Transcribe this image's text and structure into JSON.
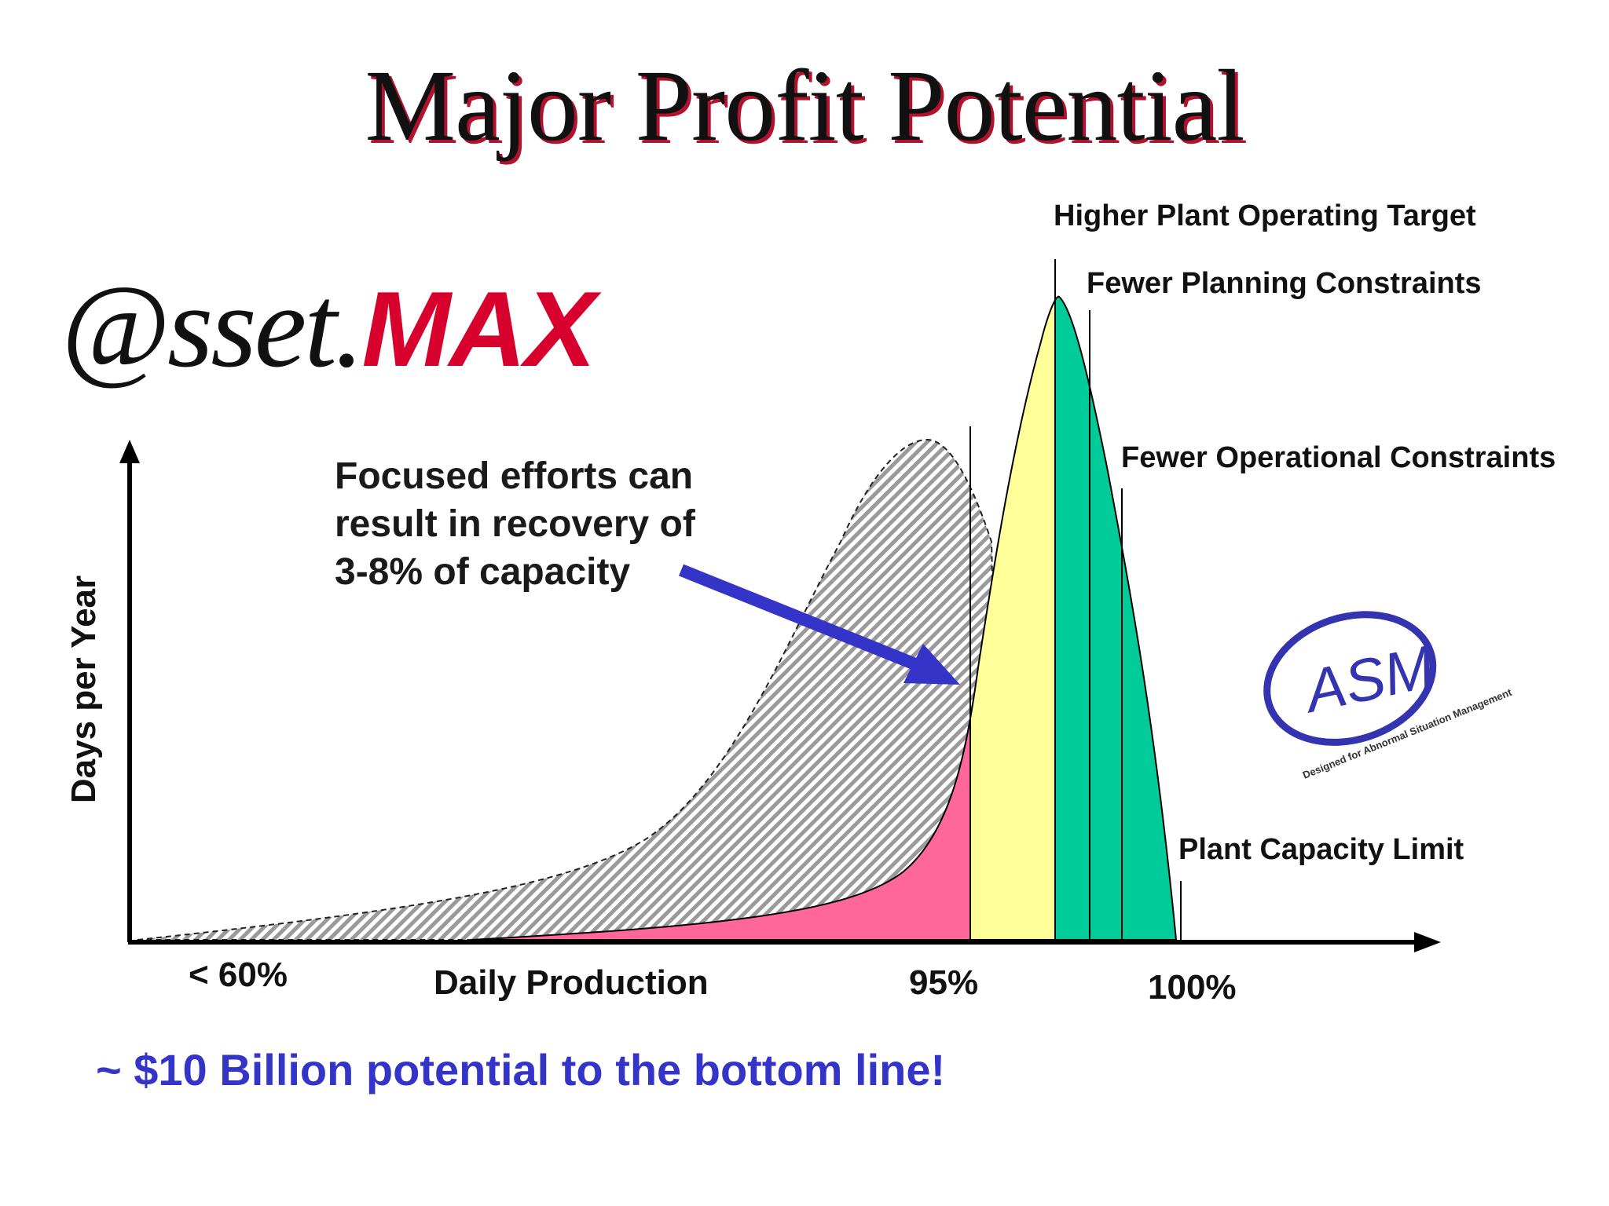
{
  "slide": {
    "title": "Major Profit Potential",
    "logo_left": {
      "part1": "@sset.",
      "part2": "MAX"
    },
    "logo_right": {
      "mark": "ASM",
      "tagline": "Designed for Abnormal Situation Management"
    },
    "callout": [
      "Focused efforts can",
      "result in recovery of",
      "3-8% of capacity"
    ],
    "bottom_line": "~ $10 Billion potential to the bottom line!"
  },
  "colors": {
    "title_shadow": "#b3122e",
    "max_logo": "#d8002c",
    "arrow": "#3434c8",
    "pink_region": "#ff6699",
    "yellow_region": "#ffff99",
    "green_region": "#00cc99",
    "hatch_region": "#9a9a9a",
    "asm_logo": "#3434b0"
  },
  "chart_data": {
    "type": "area",
    "xlabel": "Daily Production",
    "ylabel": "Days per Year",
    "tick_labels": [
      "< 60%",
      "95%",
      "100%"
    ],
    "annotations": [
      "Higher Plant Operating Target",
      "Fewer Planning Constraints",
      "Fewer Operational Constraints",
      "Plant Capacity  Limit"
    ],
    "regions": [
      "pink",
      "yellow",
      "green",
      "hatched"
    ]
  }
}
